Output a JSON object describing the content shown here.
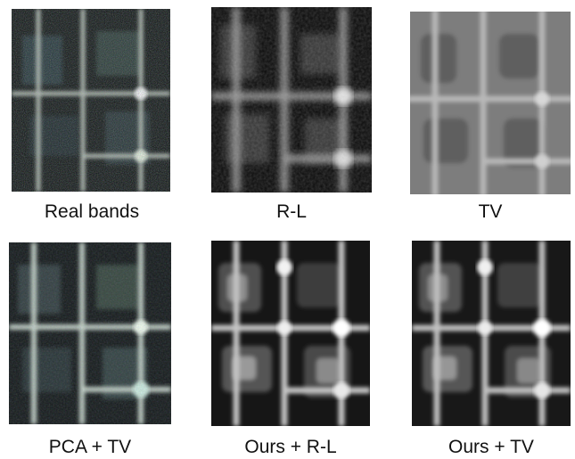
{
  "figure": {
    "panels": [
      {
        "caption": "Real bands",
        "style": "color-noisy"
      },
      {
        "caption": "R-L",
        "style": "gray-dark"
      },
      {
        "caption": "TV",
        "style": "gray-flat"
      },
      {
        "caption": "PCA + TV",
        "style": "color-smooth"
      },
      {
        "caption": "Ours + R-L",
        "style": "gray-sharp"
      },
      {
        "caption": "Ours + TV",
        "style": "gray-sharp"
      }
    ]
  }
}
